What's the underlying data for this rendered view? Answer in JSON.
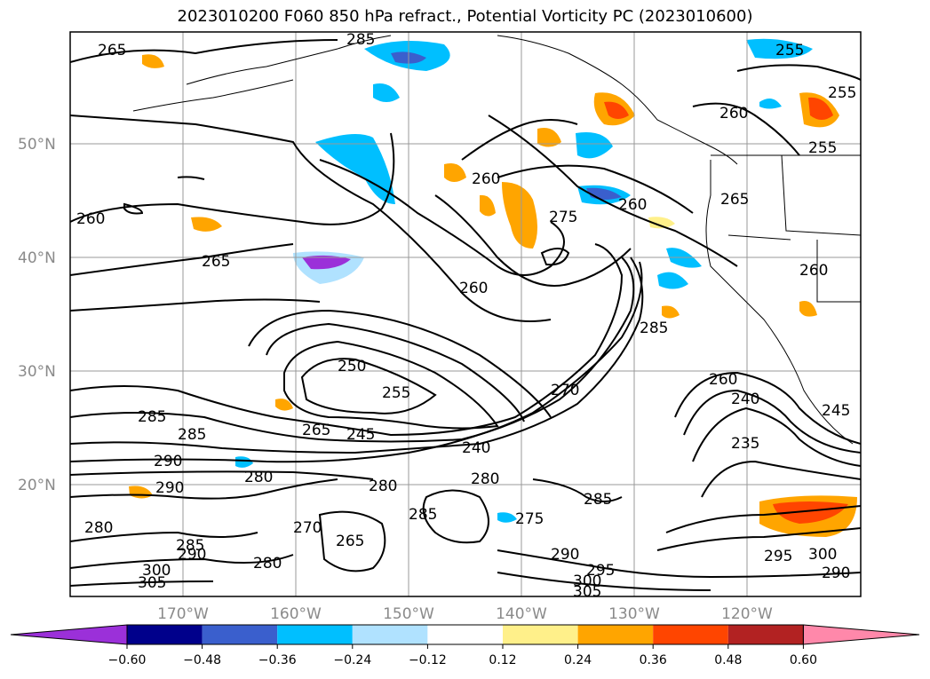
{
  "title": "2023010200 F060 850 hPa refract., Potential Vorticity PC (2023010600)",
  "lat_labels": [
    "20°N",
    "30°N",
    "40°N",
    "50°N"
  ],
  "lon_labels": [
    "170°W",
    "160°W",
    "150°W",
    "140°W",
    "130°W",
    "120°W"
  ],
  "colorbar": {
    "ticks": [
      "−0.60",
      "−0.48",
      "−0.36",
      "−0.24",
      "−0.12",
      "0.12",
      "0.24",
      "0.36",
      "0.48",
      "0.60"
    ],
    "colors": [
      "#9b30d9",
      "#00008b",
      "#3a5fcd",
      "#00bfff",
      "#b0e2ff",
      "#ffffff",
      "#fff08a",
      "#ffa500",
      "#ff4500",
      "#b22222",
      "#ff88aa"
    ]
  },
  "contour_labels": [
    "265",
    "285",
    "255",
    "255",
    "255",
    "260",
    "260",
    "260",
    "275",
    "260",
    "265",
    "260",
    "265",
    "260",
    "285",
    "250",
    "255",
    "265",
    "245",
    "240",
    "270",
    "260",
    "240",
    "235",
    "245",
    "285",
    "290",
    "285",
    "280",
    "280",
    "290",
    "285",
    "275",
    "280",
    "265",
    "270",
    "285",
    "290",
    "280",
    "305",
    "300",
    "295",
    "290",
    "300",
    "305",
    "285",
    "295",
    "300",
    "290",
    "280"
  ],
  "map_colors": {
    "land_border": "#000000",
    "contour": "#000000",
    "grid": "#999999"
  }
}
